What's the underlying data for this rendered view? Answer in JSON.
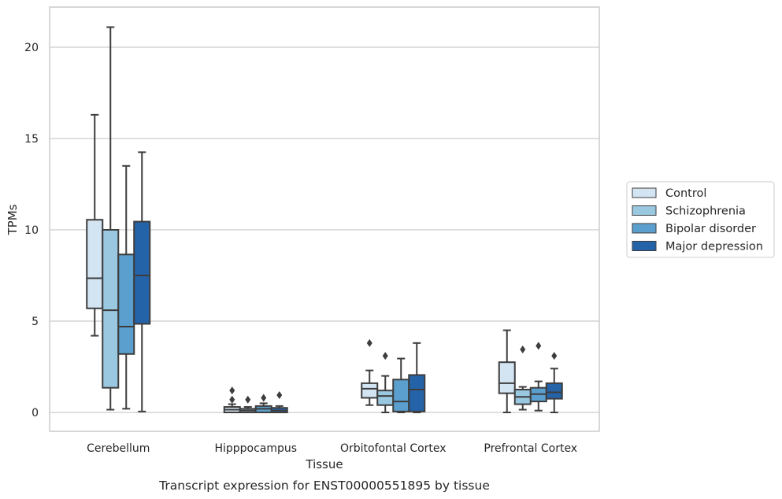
{
  "chart_data": {
    "type": "box",
    "title": "",
    "caption": "Transcript expression for ENST00000551895 by tissue",
    "xlabel": "Tissue",
    "ylabel": "TPMs",
    "ylim": [
      -1,
      22
    ],
    "yticks": [
      0,
      5,
      10,
      15,
      20
    ],
    "grid": "horizontal",
    "legend_position": "right",
    "categories": [
      "Cerebellum",
      "Hipppocampus",
      "Orbitofontal Cortex",
      "Prefrontal Cortex"
    ],
    "series": [
      {
        "name": "Control",
        "color": "#d3e4f3",
        "boxes": [
          {
            "whislo": 4.2,
            "q1": 5.7,
            "med": 7.35,
            "q3": 10.55,
            "whishi": 16.3,
            "fliers": []
          },
          {
            "whislo": 0.0,
            "q1": 0.0,
            "med": 0.15,
            "q3": 0.3,
            "whishi": 0.45,
            "fliers": [
              0.7,
              1.2
            ]
          },
          {
            "whislo": 0.4,
            "q1": 0.8,
            "med": 1.3,
            "q3": 1.6,
            "whishi": 2.3,
            "fliers": [
              3.8
            ]
          },
          {
            "whislo": 0.0,
            "q1": 1.05,
            "med": 1.6,
            "q3": 2.75,
            "whishi": 4.5,
            "fliers": []
          }
        ]
      },
      {
        "name": "Schizophrenia",
        "color": "#9ac8e0",
        "boxes": [
          {
            "whislo": 0.15,
            "q1": 1.35,
            "med": 5.6,
            "q3": 10.0,
            "whishi": 21.1,
            "fliers": []
          },
          {
            "whislo": 0.0,
            "q1": 0.0,
            "med": 0.1,
            "q3": 0.2,
            "whishi": 0.3,
            "fliers": [
              0.7
            ]
          },
          {
            "whislo": 0.0,
            "q1": 0.4,
            "med": 0.9,
            "q3": 1.2,
            "whishi": 2.0,
            "fliers": [
              3.1
            ]
          },
          {
            "whislo": 0.15,
            "q1": 0.45,
            "med": 0.85,
            "q3": 1.25,
            "whishi": 1.4,
            "fliers": [
              3.45
            ]
          }
        ]
      },
      {
        "name": "Bipolar disorder",
        "color": "#5a9fcd",
        "boxes": [
          {
            "whislo": 0.2,
            "q1": 3.2,
            "med": 4.7,
            "q3": 8.65,
            "whishi": 13.5,
            "fliers": []
          },
          {
            "whislo": 0.0,
            "q1": 0.0,
            "med": 0.2,
            "q3": 0.35,
            "whishi": 0.5,
            "fliers": [
              0.8
            ]
          },
          {
            "whislo": 0.0,
            "q1": 0.05,
            "med": 0.6,
            "q3": 1.8,
            "whishi": 2.95,
            "fliers": []
          },
          {
            "whislo": 0.1,
            "q1": 0.6,
            "med": 1.0,
            "q3": 1.35,
            "whishi": 1.7,
            "fliers": [
              3.65
            ]
          }
        ]
      },
      {
        "name": "Major depression",
        "color": "#2563a8",
        "boxes": [
          {
            "whislo": 0.05,
            "q1": 4.85,
            "med": 7.5,
            "q3": 10.45,
            "whishi": 14.25,
            "fliers": []
          },
          {
            "whislo": 0.0,
            "q1": 0.0,
            "med": 0.1,
            "q3": 0.25,
            "whishi": 0.35,
            "fliers": [
              0.95
            ]
          },
          {
            "whislo": 0.0,
            "q1": 0.05,
            "med": 1.25,
            "q3": 2.05,
            "whishi": 3.8,
            "fliers": []
          },
          {
            "whislo": 0.0,
            "q1": 0.75,
            "med": 1.1,
            "q3": 1.6,
            "whishi": 2.4,
            "fliers": [
              3.1
            ]
          }
        ]
      }
    ]
  }
}
